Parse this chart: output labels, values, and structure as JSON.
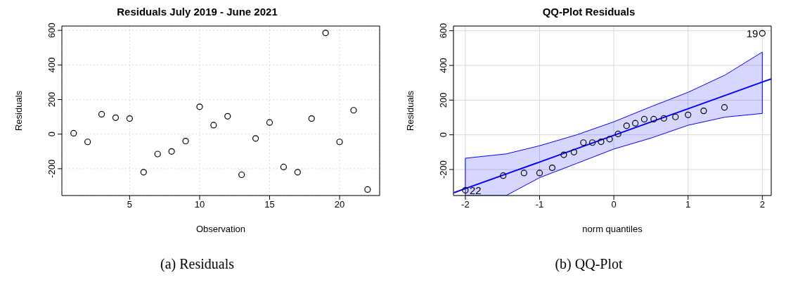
{
  "chart_data": [
    {
      "type": "scatter",
      "title": "Residuals July 2019 - June 2021",
      "xlabel": "Observation",
      "ylabel": "Residuals",
      "marker": "circle",
      "grid": true,
      "x": [
        1,
        2,
        3,
        4,
        5,
        6,
        7,
        8,
        9,
        10,
        11,
        12,
        13,
        14,
        15,
        16,
        17,
        18,
        19,
        20,
        21,
        22
      ],
      "values": [
        5,
        -45,
        115,
        95,
        90,
        -220,
        -115,
        -100,
        -40,
        158,
        52,
        103,
        -235,
        -25,
        67,
        -190,
        -220,
        90,
        585,
        -45,
        138,
        -320
      ],
      "color": "#000000",
      "xlim": [
        0.16,
        22.86
      ],
      "xticks": [
        5,
        10,
        15,
        20
      ],
      "ylim": [
        -355,
        625
      ],
      "yticks": [
        -200,
        0,
        200,
        400,
        600
      ],
      "annotations": [
        "(a) Residuals"
      ]
    },
    {
      "type": "scatter",
      "title": "QQ-Plot Residuals",
      "xlabel": "norm quantiles",
      "ylabel": "Residuals",
      "grid": true,
      "series": [
        {
          "marker": "circle",
          "color": "#000000",
          "x": [
            -2.0,
            -1.49,
            -1.21,
            -1.0,
            -0.83,
            -0.674,
            -0.537,
            -0.41,
            -0.289,
            -0.172,
            -0.057,
            0.057,
            0.172,
            0.289,
            0.41,
            0.537,
            0.674,
            0.83,
            1.0,
            1.21,
            1.49,
            2.0
          ],
          "values": [
            -320,
            -235,
            -220,
            -220,
            -190,
            -115,
            -100,
            -45,
            -45,
            -40,
            -25,
            5,
            52,
            67,
            90,
            90,
            95,
            103,
            115,
            138,
            158,
            585
          ]
        },
        {
          "type": "line",
          "marker": "none",
          "color": "#0000ff",
          "x": [
            -2.155,
            -2,
            -1.45,
            -1,
            -0.5,
            0,
            0.5,
            1,
            1.5,
            2,
            2.12
          ],
          "values": [
            -334,
            -310,
            -226,
            -157,
            -80,
            -3,
            74,
            150,
            227,
            304,
            322
          ],
          "lower": [
            null,
            -350,
            -350,
            -247,
            -165,
            -82,
            -19,
            55,
            102,
            123,
            null
          ],
          "upper": [
            null,
            -135,
            -110,
            -63,
            0,
            75,
            162,
            245,
            345,
            477,
            null
          ]
        }
      ],
      "xlim": [
        -2.16,
        2.12
      ],
      "xticks": [
        -2,
        -1,
        0,
        1,
        2
      ],
      "ylim": [
        -350,
        627
      ],
      "yticks": [
        -200,
        0,
        200,
        400,
        600
      ],
      "annotations": [
        {
          "text": "19",
          "x": 2,
          "y": 585
        },
        {
          "text": "22",
          "x": -2,
          "y": -320
        },
        "(b) QQ-Plot"
      ]
    }
  ]
}
